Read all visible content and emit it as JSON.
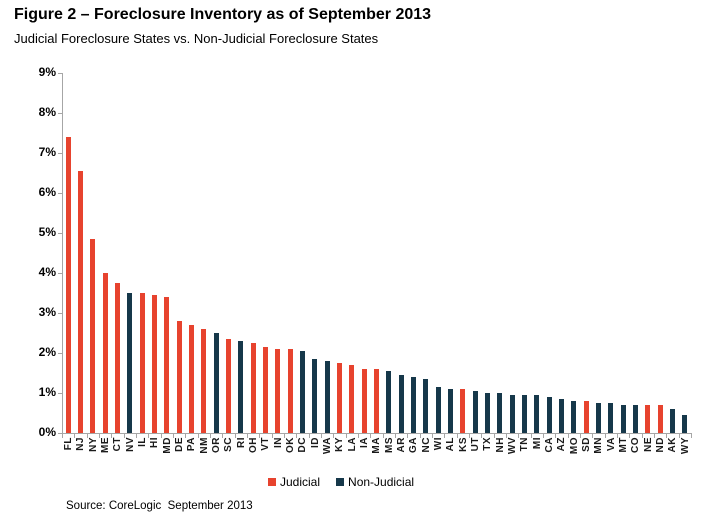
{
  "header": {
    "title": "Figure 2 – Foreclosure Inventory as of September 2013",
    "subtitle": "Judicial Foreclosure States vs. Non-Judicial Foreclosure States"
  },
  "footer": {
    "source": "Source: CoreLogic  September 2013"
  },
  "legend": {
    "position": "bottom",
    "items": [
      {
        "label": "Judicial",
        "color": "#e7432e"
      },
      {
        "label": "Non-Judicial",
        "color": "#16384a"
      }
    ]
  },
  "chart_data": {
    "type": "bar",
    "title": "Figure 2 – Foreclosure Inventory as of September 2013",
    "subtitle": "Judicial Foreclosure States vs. Non-Judicial Foreclosure States",
    "xlabel": "",
    "ylabel": "",
    "unit": "%",
    "ylim": [
      0,
      9
    ],
    "yticks": [
      "0%",
      "1%",
      "2%",
      "3%",
      "4%",
      "5%",
      "6%",
      "7%",
      "8%",
      "9%"
    ],
    "grid": false,
    "axis_color": "#a6a6a6",
    "series_colors": {
      "Judicial": "#e7432e",
      "Non-Judicial": "#16384a"
    },
    "bars": [
      {
        "state": "FL",
        "value": 7.4,
        "type": "Judicial"
      },
      {
        "state": "NJ",
        "value": 6.55,
        "type": "Judicial"
      },
      {
        "state": "NY",
        "value": 4.85,
        "type": "Judicial"
      },
      {
        "state": "ME",
        "value": 4.0,
        "type": "Judicial"
      },
      {
        "state": "CT",
        "value": 3.75,
        "type": "Judicial"
      },
      {
        "state": "NV",
        "value": 3.5,
        "type": "Non-Judicial"
      },
      {
        "state": "IL",
        "value": 3.5,
        "type": "Judicial"
      },
      {
        "state": "HI",
        "value": 3.45,
        "type": "Judicial"
      },
      {
        "state": "MD",
        "value": 3.4,
        "type": "Judicial"
      },
      {
        "state": "DE",
        "value": 2.8,
        "type": "Judicial"
      },
      {
        "state": "PA",
        "value": 2.7,
        "type": "Judicial"
      },
      {
        "state": "NM",
        "value": 2.6,
        "type": "Judicial"
      },
      {
        "state": "OR",
        "value": 2.5,
        "type": "Non-Judicial"
      },
      {
        "state": "SC",
        "value": 2.35,
        "type": "Judicial"
      },
      {
        "state": "RI",
        "value": 2.3,
        "type": "Non-Judicial"
      },
      {
        "state": "OH",
        "value": 2.25,
        "type": "Judicial"
      },
      {
        "state": "VT",
        "value": 2.15,
        "type": "Judicial"
      },
      {
        "state": "IN",
        "value": 2.1,
        "type": "Judicial"
      },
      {
        "state": "OK",
        "value": 2.1,
        "type": "Judicial"
      },
      {
        "state": "DC",
        "value": 2.05,
        "type": "Non-Judicial"
      },
      {
        "state": "ID",
        "value": 1.85,
        "type": "Non-Judicial"
      },
      {
        "state": "WA",
        "value": 1.8,
        "type": "Non-Judicial"
      },
      {
        "state": "KY",
        "value": 1.75,
        "type": "Judicial"
      },
      {
        "state": "LA",
        "value": 1.7,
        "type": "Judicial"
      },
      {
        "state": "IA",
        "value": 1.6,
        "type": "Judicial"
      },
      {
        "state": "MA",
        "value": 1.6,
        "type": "Judicial"
      },
      {
        "state": "MS",
        "value": 1.55,
        "type": "Non-Judicial"
      },
      {
        "state": "AR",
        "value": 1.45,
        "type": "Non-Judicial"
      },
      {
        "state": "GA",
        "value": 1.4,
        "type": "Non-Judicial"
      },
      {
        "state": "NC",
        "value": 1.35,
        "type": "Non-Judicial"
      },
      {
        "state": "WI",
        "value": 1.15,
        "type": "Non-Judicial"
      },
      {
        "state": "AL",
        "value": 1.1,
        "type": "Non-Judicial"
      },
      {
        "state": "KS",
        "value": 1.1,
        "type": "Judicial"
      },
      {
        "state": "UT",
        "value": 1.05,
        "type": "Non-Judicial"
      },
      {
        "state": "TX",
        "value": 1.0,
        "type": "Non-Judicial"
      },
      {
        "state": "NH",
        "value": 1.0,
        "type": "Non-Judicial"
      },
      {
        "state": "WV",
        "value": 0.95,
        "type": "Non-Judicial"
      },
      {
        "state": "TN",
        "value": 0.95,
        "type": "Non-Judicial"
      },
      {
        "state": "MI",
        "value": 0.95,
        "type": "Non-Judicial"
      },
      {
        "state": "CA",
        "value": 0.9,
        "type": "Non-Judicial"
      },
      {
        "state": "AZ",
        "value": 0.85,
        "type": "Non-Judicial"
      },
      {
        "state": "MO",
        "value": 0.8,
        "type": "Non-Judicial"
      },
      {
        "state": "SD",
        "value": 0.8,
        "type": "Judicial"
      },
      {
        "state": "MN",
        "value": 0.75,
        "type": "Non-Judicial"
      },
      {
        "state": "VA",
        "value": 0.75,
        "type": "Non-Judicial"
      },
      {
        "state": "MT",
        "value": 0.7,
        "type": "Non-Judicial"
      },
      {
        "state": "CO",
        "value": 0.7,
        "type": "Non-Judicial"
      },
      {
        "state": "NE",
        "value": 0.7,
        "type": "Judicial"
      },
      {
        "state": "ND",
        "value": 0.7,
        "type": "Judicial"
      },
      {
        "state": "AK",
        "value": 0.6,
        "type": "Non-Judicial"
      },
      {
        "state": "WY",
        "value": 0.45,
        "type": "Non-Judicial"
      }
    ]
  }
}
